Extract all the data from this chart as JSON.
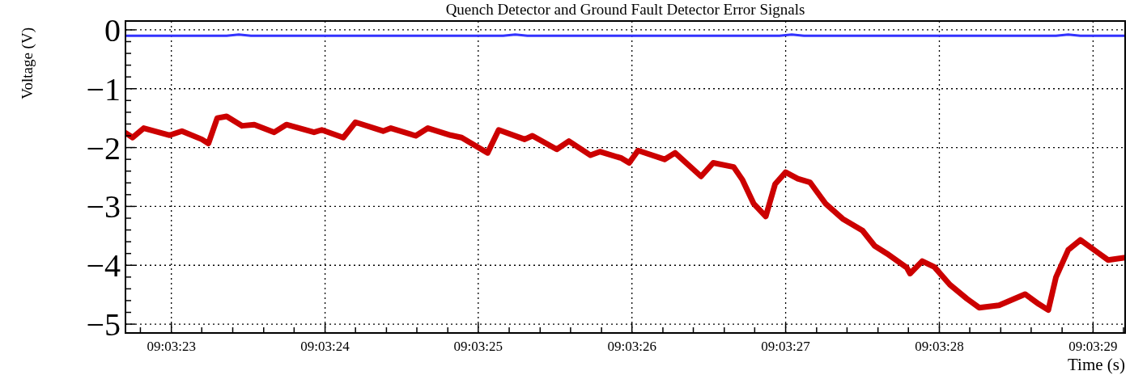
{
  "chart_data": {
    "type": "line",
    "title": "Quench Detector and Ground Fault Detector Error Signals",
    "xlabel": "Time (s)",
    "ylabel": "Voltage (V)",
    "xlim": [
      9.056306,
      9.058114
    ],
    "ylim": [
      -5.15,
      0.15
    ],
    "xticks": [
      {
        "value": 9.056333,
        "label": null
      },
      {
        "value": 9.056389,
        "label": "09:03:23"
      },
      {
        "value": 9.056444,
        "label": null
      },
      {
        "value": 9.0565,
        "label": null
      },
      {
        "value": 9.056556,
        "label": null
      },
      {
        "value": 9.056611,
        "label": null
      },
      {
        "value": 9.056667,
        "label": "09:03:24"
      },
      {
        "value": 9.056722,
        "label": null
      },
      {
        "value": 9.056778,
        "label": null
      },
      {
        "value": 9.056833,
        "label": null
      },
      {
        "value": 9.056889,
        "label": null
      },
      {
        "value": 9.056944,
        "label": "09:03:25"
      },
      {
        "value": 9.057,
        "label": null
      },
      {
        "value": 9.057056,
        "label": null
      },
      {
        "value": 9.057111,
        "label": null
      },
      {
        "value": 9.057167,
        "label": null
      },
      {
        "value": 9.057222,
        "label": "09:03:26"
      },
      {
        "value": 9.057278,
        "label": null
      },
      {
        "value": 9.057333,
        "label": null
      },
      {
        "value": 9.057389,
        "label": null
      },
      {
        "value": 9.057444,
        "label": null
      },
      {
        "value": 9.0575,
        "label": "09:03:27"
      },
      {
        "value": 9.057556,
        "label": null
      },
      {
        "value": 9.057611,
        "label": null
      },
      {
        "value": 9.057667,
        "label": null
      },
      {
        "value": 9.057722,
        "label": null
      },
      {
        "value": 9.057778,
        "label": "09:03:28"
      },
      {
        "value": 9.057833,
        "label": null
      },
      {
        "value": 9.057889,
        "label": null
      },
      {
        "value": 9.057944,
        "label": null
      },
      {
        "value": 9.058,
        "label": null
      },
      {
        "value": 9.058056,
        "label": "09:03:29"
      },
      {
        "value": 9.058111,
        "label": null
      }
    ],
    "yticks": [
      {
        "value": 0,
        "label": "0"
      },
      {
        "value": -0.2,
        "label": null
      },
      {
        "value": -0.4,
        "label": null
      },
      {
        "value": -0.6,
        "label": null
      },
      {
        "value": -0.8,
        "label": null
      },
      {
        "value": -1,
        "label": "−1"
      },
      {
        "value": -1.2,
        "label": null
      },
      {
        "value": -1.4,
        "label": null
      },
      {
        "value": -1.6,
        "label": null
      },
      {
        "value": -1.8,
        "label": null
      },
      {
        "value": -2,
        "label": "−2"
      },
      {
        "value": -2.2,
        "label": null
      },
      {
        "value": -2.4,
        "label": null
      },
      {
        "value": -2.6,
        "label": null
      },
      {
        "value": -2.8,
        "label": null
      },
      {
        "value": -3,
        "label": "−3"
      },
      {
        "value": -3.2,
        "label": null
      },
      {
        "value": -3.4,
        "label": null
      },
      {
        "value": -3.6,
        "label": null
      },
      {
        "value": -3.8,
        "label": null
      },
      {
        "value": -4,
        "label": "−4"
      },
      {
        "value": -4.2,
        "label": null
      },
      {
        "value": -4.4,
        "label": null
      },
      {
        "value": -4.6,
        "label": null
      },
      {
        "value": -4.8,
        "label": null
      },
      {
        "value": -5,
        "label": "−5"
      }
    ],
    "grid": true,
    "line_style": "solid",
    "series": [
      {
        "color": "#3333ff",
        "x": [
          9.056306,
          9.056489,
          9.056511,
          9.056533,
          9.0568,
          9.056989,
          9.057011,
          9.057033,
          9.0573,
          9.057489,
          9.057511,
          9.057533,
          9.0578,
          9.057989,
          9.058011,
          9.058033,
          9.058114
        ],
        "values": [
          -0.1,
          -0.1,
          -0.08,
          -0.1,
          -0.1,
          -0.1,
          -0.08,
          -0.1,
          -0.1,
          -0.1,
          -0.08,
          -0.1,
          -0.1,
          -0.1,
          -0.08,
          -0.1,
          -0.1
        ]
      },
      {
        "color": "#cc0000",
        "x": [
          9.056306,
          9.056319,
          9.056339,
          9.056386,
          9.056408,
          9.056444,
          9.056456,
          9.056472,
          9.056489,
          9.056517,
          9.056539,
          9.056575,
          9.056597,
          9.056647,
          9.056661,
          9.0567,
          9.056722,
          9.056772,
          9.056786,
          9.056831,
          9.056853,
          9.056894,
          9.056914,
          9.056961,
          9.056981,
          9.057028,
          9.057042,
          9.057086,
          9.057108,
          9.057147,
          9.057164,
          9.057203,
          9.057217,
          9.057233,
          9.057281,
          9.0573,
          9.057347,
          9.057369,
          9.057406,
          9.057422,
          9.057442,
          9.057464,
          9.057481,
          9.0575,
          9.057522,
          9.057544,
          9.057572,
          9.057603,
          9.057639,
          9.057661,
          9.057683,
          9.057719,
          9.057725,
          9.057747,
          9.057769,
          9.057797,
          9.057828,
          9.05785,
          9.057886,
          9.057933,
          9.057958,
          9.057975,
          9.057989,
          9.058011,
          9.058033,
          9.058064,
          9.058083,
          9.058114
        ],
        "values": [
          -1.75,
          -1.83,
          -1.67,
          -1.79,
          -1.72,
          -1.86,
          -1.93,
          -1.5,
          -1.47,
          -1.63,
          -1.61,
          -1.74,
          -1.61,
          -1.74,
          -1.7,
          -1.83,
          -1.57,
          -1.72,
          -1.67,
          -1.8,
          -1.67,
          -1.79,
          -1.83,
          -2.09,
          -1.7,
          -1.86,
          -1.8,
          -2.03,
          -1.89,
          -2.13,
          -2.07,
          -2.18,
          -2.26,
          -2.05,
          -2.2,
          -2.09,
          -2.49,
          -2.26,
          -2.33,
          -2.55,
          -2.95,
          -3.17,
          -2.62,
          -2.42,
          -2.53,
          -2.59,
          -2.95,
          -3.21,
          -3.41,
          -3.67,
          -3.8,
          -4.04,
          -4.14,
          -3.93,
          -4.03,
          -4.33,
          -4.57,
          -4.72,
          -4.68,
          -4.49,
          -4.66,
          -4.76,
          -4.2,
          -3.74,
          -3.57,
          -3.78,
          -3.91,
          -3.87
        ]
      }
    ]
  }
}
